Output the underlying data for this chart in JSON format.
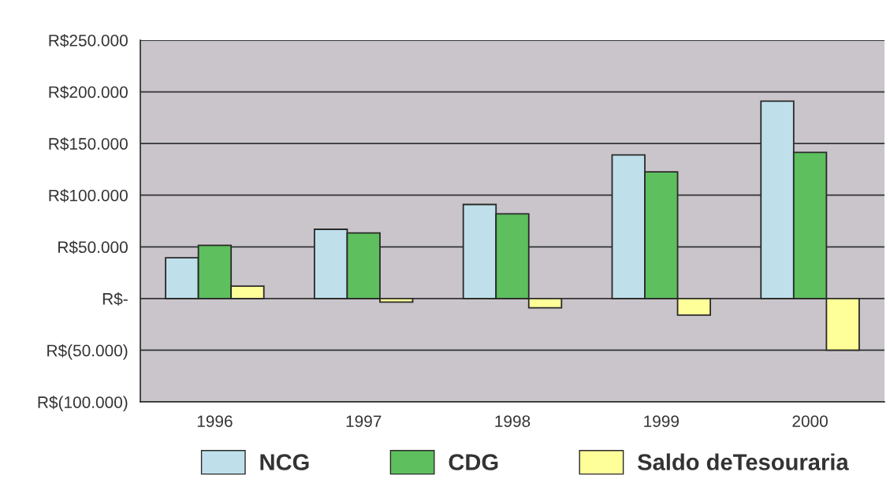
{
  "chart_data": {
    "type": "bar",
    "categories": [
      "1996",
      "1997",
      "1998",
      "1999",
      "2000"
    ],
    "series": [
      {
        "name": "NCG",
        "color": "#bfe0ea",
        "values": [
          39500,
          67000,
          91000,
          139000,
          191000
        ]
      },
      {
        "name": "CDG",
        "color": "#5dbf5d",
        "values": [
          51500,
          63500,
          82000,
          122500,
          141500
        ]
      },
      {
        "name": "Saldo deTesouraria",
        "color": "#ffff99",
        "values": [
          12000,
          -3500,
          -9000,
          -16000,
          -50000
        ]
      }
    ],
    "ylim": [
      -100000,
      250000
    ],
    "yticks": [
      {
        "value": -100000,
        "label": "R$(100.000)"
      },
      {
        "value": -50000,
        "label": "R$(50.000)"
      },
      {
        "value": 0,
        "label": "R$-"
      },
      {
        "value": 50000,
        "label": "R$50.000"
      },
      {
        "value": 100000,
        "label": "R$100.000"
      },
      {
        "value": 150000,
        "label": "R$150.000"
      },
      {
        "value": 200000,
        "label": "R$200.000"
      },
      {
        "value": 250000,
        "label": "R$250.000"
      }
    ],
    "grid": "y",
    "legend": "bottom"
  }
}
